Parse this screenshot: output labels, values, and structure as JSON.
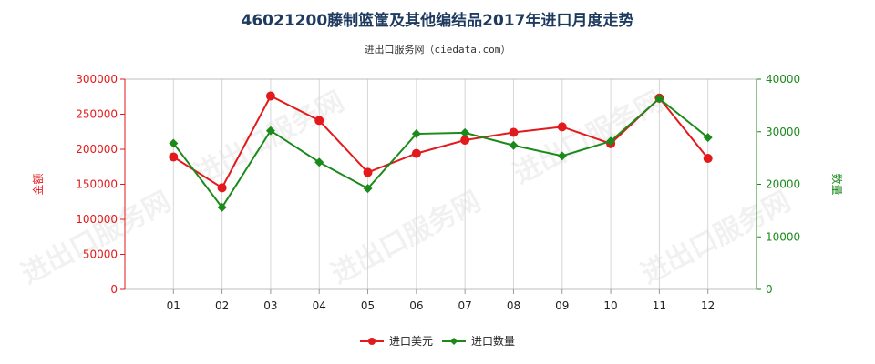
{
  "title": "46021200藤制篮筐及其他编结品2017年进口月度走势",
  "subtitle": "进出口服务网（ciedata.com）",
  "watermark": "进出口服务网",
  "colors": {
    "amount": "#e31a1c",
    "quantity": "#1a8a1a",
    "title": "#1f3a5f"
  },
  "chart_data": {
    "type": "line",
    "categories": [
      "01",
      "02",
      "03",
      "04",
      "05",
      "06",
      "07",
      "08",
      "09",
      "10",
      "11",
      "12"
    ],
    "y_left": {
      "label": "金额",
      "range": [
        0,
        300000
      ],
      "ticks": [
        0,
        50000,
        100000,
        150000,
        200000,
        250000,
        300000
      ]
    },
    "y_right": {
      "label": "数量",
      "range": [
        0,
        40000
      ],
      "ticks": [
        0,
        10000,
        20000,
        30000,
        40000
      ]
    },
    "grid": true,
    "legend_position": "bottom-center",
    "series": [
      {
        "name": "进口美元",
        "axis": "left",
        "marker": "circle",
        "color": "#e31a1c",
        "values": [
          189000,
          145000,
          276000,
          241000,
          167000,
          194000,
          213000,
          224000,
          232000,
          208000,
          273000,
          187000
        ]
      },
      {
        "name": "进口数量",
        "axis": "right",
        "marker": "diamond",
        "color": "#1a8a1a",
        "values": [
          27800,
          15600,
          30200,
          24200,
          19200,
          29600,
          29800,
          27400,
          25400,
          28200,
          36300,
          28900
        ]
      }
    ]
  }
}
